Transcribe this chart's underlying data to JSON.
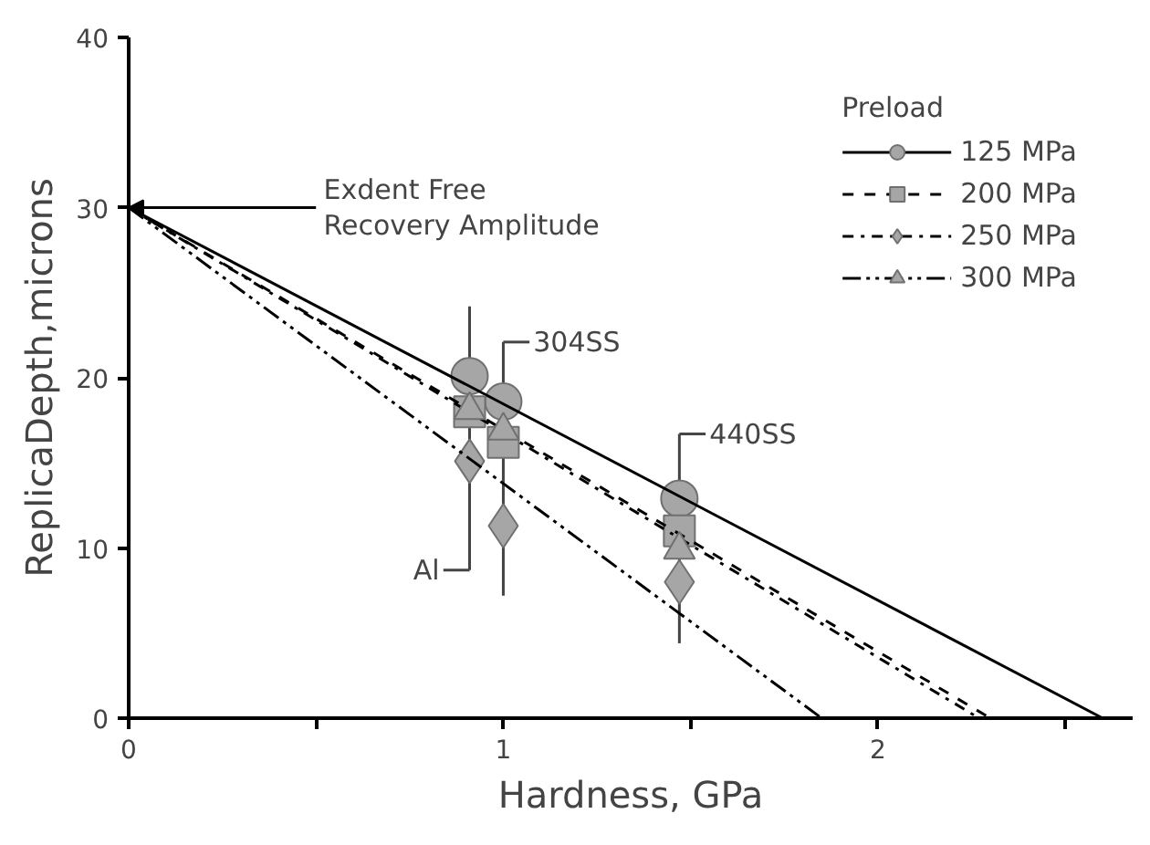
{
  "chart_data": {
    "type": "scatter",
    "xlabel": "Hardness, GPa",
    "ylabel": "ReplicaDepth,microns",
    "legend_title": "Preload",
    "legend": "top right",
    "grid": false,
    "xlim": [
      0,
      2.68
    ],
    "xticks": [
      0,
      {
        "value": 0.5,
        "label": null
      },
      1,
      {
        "value": 1.5,
        "label": null
      },
      2,
      {
        "value": 2.5,
        "label": null
      }
    ],
    "ylim": [
      0,
      40
    ],
    "yticks": [
      0,
      10,
      20,
      30,
      40
    ],
    "series": [
      {
        "name": "125 MPa",
        "marker": "circle",
        "color": "#a6a6a6",
        "x": [
          0.91,
          1.0,
          1.47
        ],
        "values": [
          20.1,
          18.6,
          12.9
        ],
        "errors": [
          [
            8.7,
            24.2
          ],
          [
            7.2,
            22.1
          ],
          [
            4.4,
            16.7
          ]
        ]
      },
      {
        "type": "line",
        "line_style": "solid",
        "color": "#000000",
        "x": [
          0,
          2.6
        ],
        "values": [
          30,
          0
        ]
      },
      {
        "name": "200 MPa",
        "marker": "square",
        "color": "#a6a6a6",
        "x": [
          0.91,
          1.0,
          1.47
        ],
        "values": [
          18.0,
          16.2,
          11.0
        ]
      },
      {
        "type": "line",
        "line_style": "dashed",
        "color": "#000000",
        "x": [
          0,
          2.3
        ],
        "values": [
          30,
          0
        ]
      },
      {
        "name": "250 MPa",
        "marker": "diamond",
        "color": "#a6a6a6",
        "x": [
          0.91,
          1.0,
          1.47
        ],
        "values": [
          15.1,
          11.3,
          8.0
        ]
      },
      {
        "type": "line",
        "line_style": "dashdot",
        "color": "#000000",
        "x": [
          0,
          2.27
        ],
        "values": [
          30,
          0
        ]
      },
      {
        "name": "300 MPa",
        "marker": "triangle",
        "color": "#a6a6a6",
        "x": [
          0.91,
          1.0,
          1.47
        ],
        "values": [
          18.1,
          16.9,
          9.9
        ]
      },
      {
        "type": "line",
        "line_style": "dashdotdot",
        "color": "#000000",
        "x": [
          0,
          1.85
        ],
        "values": [
          30,
          0
        ]
      }
    ],
    "annotations": [
      {
        "text": "Exdent Free\nRecovery Amplitude",
        "x": 0,
        "y": 30
      },
      {
        "text": "Al",
        "x": 0.91,
        "y": 8.7
      },
      {
        "text": "304SS",
        "x": 1.0,
        "y": 22.1
      },
      {
        "text": "440SS",
        "x": 1.47,
        "y": 16.7
      }
    ]
  }
}
